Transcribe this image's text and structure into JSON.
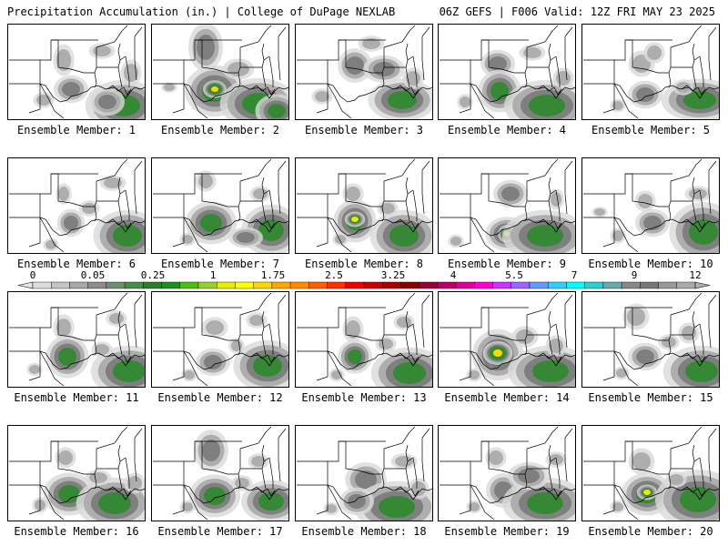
{
  "header": {
    "left": "Precipitation Accumulation (in.) | College of DuPage NEXLAB",
    "right": "06Z GEFS | F006 Valid: 12Z FRI MAY 23 2025"
  },
  "panels": [
    {
      "label": "Ensemble Member: 1"
    },
    {
      "label": "Ensemble Member: 2"
    },
    {
      "label": "Ensemble Member: 3"
    },
    {
      "label": "Ensemble Member: 4"
    },
    {
      "label": "Ensemble Member: 5"
    },
    {
      "label": "Ensemble Member: 6"
    },
    {
      "label": "Ensemble Member: 7"
    },
    {
      "label": "Ensemble Member: 8"
    },
    {
      "label": "Ensemble Member: 9"
    },
    {
      "label": "Ensemble Member: 10"
    },
    {
      "label": "Ensemble Member: 11"
    },
    {
      "label": "Ensemble Member: 12"
    },
    {
      "label": "Ensemble Member: 13"
    },
    {
      "label": "Ensemble Member: 14"
    },
    {
      "label": "Ensemble Member: 15"
    },
    {
      "label": "Ensemble Member: 16"
    },
    {
      "label": "Ensemble Member: 17"
    },
    {
      "label": "Ensemble Member: 18"
    },
    {
      "label": "Ensemble Member: 19"
    },
    {
      "label": "Ensemble Member: 20"
    }
  ],
  "colorbar": {
    "labels": [
      "0",
      "0.05",
      "0.25",
      "1",
      "1.75",
      "2.5",
      "3.25",
      "4",
      "5.5",
      "7",
      "9",
      "12"
    ],
    "colors": [
      "#dcdcdc",
      "#c4c4c4",
      "#a8a8a8",
      "#8c8c8c",
      "#6e8e6e",
      "#4a8a4a",
      "#2e7d2e",
      "#1e8f1e",
      "#4cbb17",
      "#9acd32",
      "#e5f000",
      "#ffff00",
      "#ffd700",
      "#ffa500",
      "#ff8c00",
      "#ff6000",
      "#ff3000",
      "#ee0000",
      "#cc0000",
      "#aa0000",
      "#880000",
      "#990033",
      "#bb0066",
      "#dd0099",
      "#ff00cc",
      "#cc33ff",
      "#9966ff",
      "#6699ff",
      "#33ccff",
      "#00ffff",
      "#33cccc",
      "#66aaaa",
      "#888888",
      "#777777",
      "#999999",
      "#aaaaaa"
    ]
  }
}
